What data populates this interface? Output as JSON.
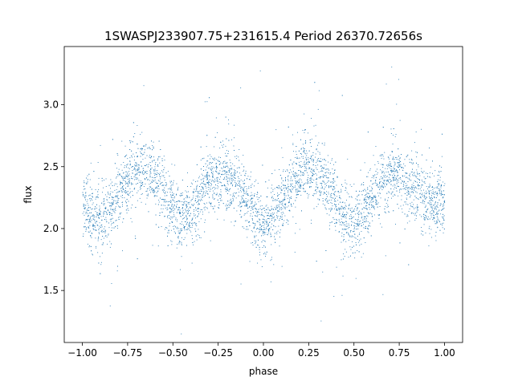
{
  "chart_data": {
    "type": "scatter",
    "title": "1SWASPJ233907.75+231615.4 Period 26370.72656s",
    "xlabel": "phase",
    "ylabel": "flux",
    "xlim": [
      -1.1,
      1.1
    ],
    "ylim": [
      1.08,
      3.47
    ],
    "xticks": [
      {
        "value": -1.0,
        "label": "−1.00"
      },
      {
        "value": -0.75,
        "label": "−0.75"
      },
      {
        "value": -0.5,
        "label": "−0.50"
      },
      {
        "value": -0.25,
        "label": "−0.25"
      },
      {
        "value": 0.0,
        "label": "0.00"
      },
      {
        "value": 0.25,
        "label": "0.25"
      },
      {
        "value": 0.5,
        "label": "0.50"
      },
      {
        "value": 0.75,
        "label": "0.75"
      },
      {
        "value": 1.0,
        "label": "1.00"
      }
    ],
    "yticks": [
      {
        "value": 1.5,
        "label": "1.5"
      },
      {
        "value": 2.0,
        "label": "2.0"
      },
      {
        "value": 2.5,
        "label": "2.5"
      },
      {
        "value": 3.0,
        "label": "3.0"
      }
    ],
    "grid": false,
    "point_color": "#1f77b4",
    "series": [
      {
        "x": [
          -1.0,
          -0.98,
          -0.96,
          -0.94,
          -0.92,
          -0.9,
          -0.88,
          -0.86,
          -0.84,
          -0.82,
          -0.8,
          -0.78,
          -0.76,
          -0.74,
          -0.72,
          -0.7,
          -0.68,
          -0.66,
          -0.64,
          -0.62,
          -0.6,
          -0.58,
          -0.56,
          -0.54,
          -0.52,
          -0.5,
          -0.48,
          -0.46,
          -0.44,
          -0.42,
          -0.4,
          -0.38,
          -0.36,
          -0.34,
          -0.32,
          -0.3,
          -0.28,
          -0.26,
          -0.24,
          -0.22,
          -0.2,
          -0.18,
          -0.16,
          -0.14,
          -0.12,
          -0.1,
          -0.08,
          -0.06,
          -0.04,
          -0.02,
          0.0,
          0.02,
          0.04,
          0.06,
          0.08,
          0.1,
          0.12,
          0.14,
          0.16,
          0.18,
          0.2,
          0.22,
          0.24,
          0.26,
          0.28,
          0.3,
          0.32,
          0.34,
          0.36,
          0.38,
          0.4,
          0.42,
          0.44,
          0.46,
          0.48,
          0.5,
          0.52,
          0.54,
          0.56,
          0.58,
          0.6,
          0.62,
          0.64,
          0.66,
          0.68,
          0.7,
          0.72,
          0.74,
          0.76,
          0.78,
          0.8,
          0.82,
          0.84,
          0.86,
          0.88,
          0.9,
          0.92,
          0.94,
          0.96,
          0.98,
          1.0
        ],
        "y": [
          2.2,
          2.17,
          2.12,
          2.08,
          2.06,
          2.06,
          2.07,
          2.1,
          2.15,
          2.21,
          2.27,
          2.33,
          2.38,
          2.42,
          2.45,
          2.47,
          2.48,
          2.48,
          2.47,
          2.45,
          2.42,
          2.38,
          2.32,
          2.26,
          2.2,
          2.15,
          2.11,
          2.09,
          2.08,
          2.1,
          2.13,
          2.18,
          2.23,
          2.28,
          2.33,
          2.37,
          2.4,
          2.42,
          2.43,
          2.43,
          2.42,
          2.4,
          2.37,
          2.33,
          2.28,
          2.23,
          2.18,
          2.13,
          2.09,
          2.07,
          2.06,
          2.06,
          2.08,
          2.11,
          2.15,
          2.2,
          2.26,
          2.32,
          2.37,
          2.42,
          2.45,
          2.47,
          2.48,
          2.48,
          2.47,
          2.45,
          2.42,
          2.38,
          2.33,
          2.27,
          2.21,
          2.15,
          2.1,
          2.07,
          2.06,
          2.07,
          2.09,
          2.12,
          2.16,
          2.21,
          2.26,
          2.31,
          2.35,
          2.38,
          2.41,
          2.42,
          2.43,
          2.43,
          2.42,
          2.4,
          2.37,
          2.34,
          2.3,
          2.27,
          2.25,
          2.23,
          2.22,
          2.2,
          2.2,
          2.21,
          2.2
        ],
        "spread": 0.13,
        "n_points": 5200
      }
    ]
  }
}
